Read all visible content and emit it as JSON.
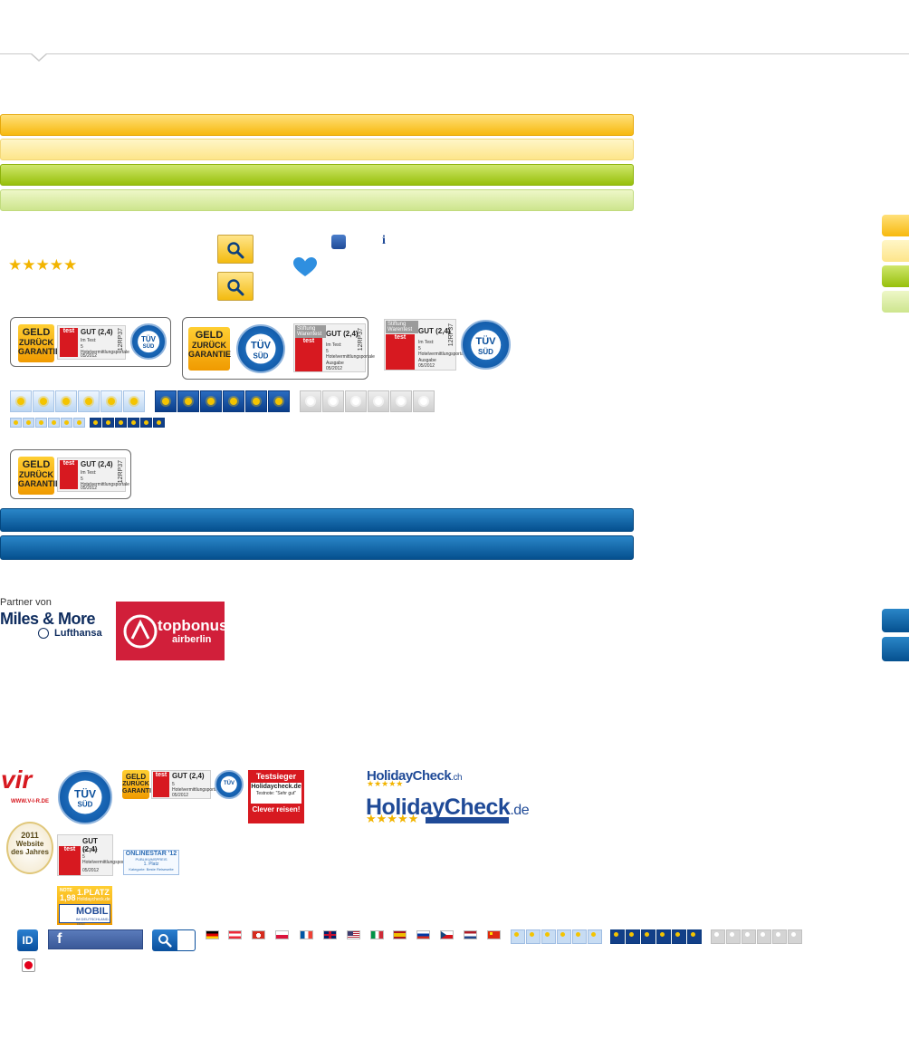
{
  "rating": {
    "stars": "★★★★★"
  },
  "badges": {
    "geld": {
      "line1": "GELD",
      "line2": "ZURÜCK",
      "line3": "GARANTIE"
    },
    "warentest": {
      "head": "Stiftung Warentest",
      "test": "test",
      "grade": "GUT (2,4)",
      "in_test": "Im Test:",
      "subject": "5 Hotelvermittlungsportale",
      "issue_label": "Ausgabe",
      "issue": "05/2012",
      "code": "12RP37"
    },
    "tuv": {
      "top": "s@fer",
      "mid1": "TÜV",
      "mid2": "SÜD",
      "bottom": "shopping"
    }
  },
  "partner": {
    "label": "Partner von",
    "miles": "Miles & More",
    "lufthansa": "Lufthansa",
    "topbonus_1": "topbonus",
    "topbonus_2": "airberlin"
  },
  "footer": {
    "vir": "vir",
    "vir_url": "WWW.V-I-R.DE",
    "testsieger": {
      "title": "Testsieger",
      "brand": "Holidaycheck.de",
      "note": "Testnote: \"Sehr gut\"",
      "slogan": "Clever reisen!"
    },
    "holidaycheck_small": "HolidayCheck",
    "holidaycheck_small_tld": ".ch",
    "holidaycheck_big": "HolidayCheck",
    "holidaycheck_big_tld": ".de",
    "award": {
      "year": "2011",
      "line1": "Website",
      "line2": "des Jahres"
    },
    "onlinestar": {
      "title": "ONLINESTAR '12",
      "sub": "PUBLIKUMSPREIS",
      "place": "1. Platz",
      "cat": "Kategorie: Beste Reiseseite"
    },
    "note198": {
      "note_label": "NOTE",
      "note": "1,98",
      "place": "1.PLATZ",
      "brand": "Holidaycheck.de",
      "mobil": "MOBIL",
      "sub": "IM DEUTSCHLAND-TEST"
    },
    "id_label": "ID",
    "fb_label": "f"
  },
  "colors": {
    "orange": "#f7b90e",
    "pale_yellow": "#fde58a",
    "green": "#97c00b",
    "pale_green": "#cde58d",
    "blue": "#05508f",
    "red": "#d71920"
  },
  "icons": {
    "search": "magnifier-icon",
    "info": "info-icon",
    "heart": "heart-icon",
    "holidaycheck": "holidaycheck-icon"
  },
  "info_glyph": "i"
}
